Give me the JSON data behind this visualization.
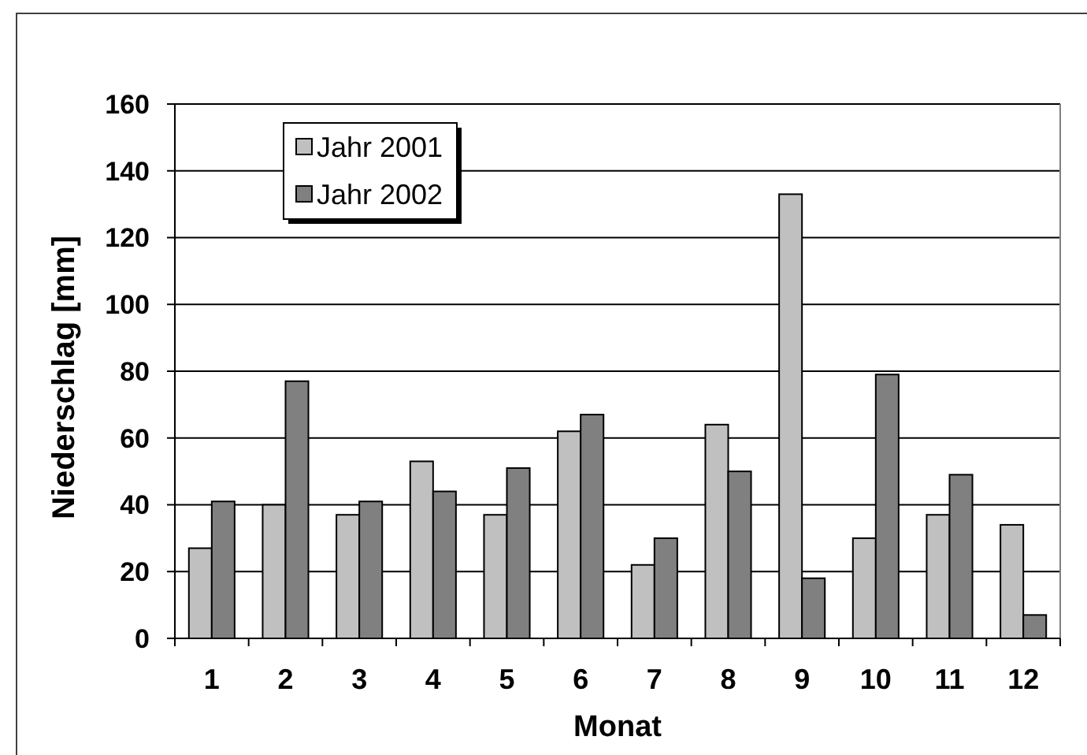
{
  "chart_data": {
    "type": "bar",
    "xlabel": "Monat",
    "ylabel": "Niederschlag [mm]",
    "categories": [
      "1",
      "2",
      "3",
      "4",
      "5",
      "6",
      "7",
      "8",
      "9",
      "10",
      "11",
      "12"
    ],
    "series": [
      {
        "name": "Jahr 2001",
        "color": "#c0c0c0",
        "values": [
          27,
          40,
          37,
          53,
          37,
          62,
          22,
          64,
          133,
          30,
          37,
          34
        ]
      },
      {
        "name": "Jahr 2002",
        "color": "#808080",
        "values": [
          41,
          77,
          41,
          44,
          51,
          67,
          30,
          50,
          18,
          79,
          49,
          7
        ]
      }
    ],
    "ylim": [
      0,
      160
    ],
    "yticks": [
      0,
      20,
      40,
      60,
      80,
      100,
      120,
      140,
      160
    ],
    "grid": "y",
    "legend": "top left"
  }
}
